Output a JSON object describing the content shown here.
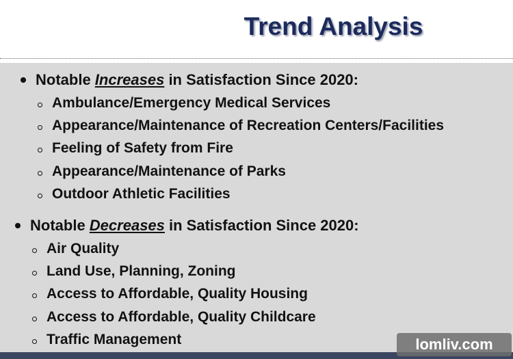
{
  "title": "Trend Analysis",
  "sections": [
    {
      "heading": {
        "before": "Notable ",
        "emphasis": "Increases",
        "after": " in Satisfaction Since 2020:"
      },
      "items": [
        "Ambulance/Emergency Medical Services",
        "Appearance/Maintenance of Recreation Centers/Facilities",
        "Feeling of Safety from Fire",
        "Appearance/Maintenance of Parks",
        "Outdoor Athletic Facilities"
      ]
    },
    {
      "heading": {
        "before": "Notable ",
        "emphasis": "Decreases",
        "after": " in Satisfaction Since 2020:"
      },
      "items": [
        "Air Quality",
        "Land Use, Planning, Zoning",
        "Access to Affordable, Quality Housing",
        "Access to Affordable, Quality Childcare",
        "Traffic Management"
      ]
    }
  ],
  "watermark": "lomliv.com"
}
